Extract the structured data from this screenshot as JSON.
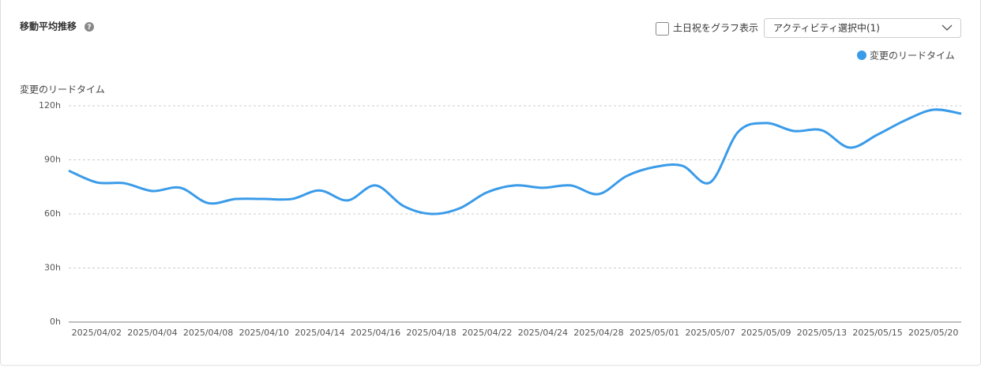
{
  "chart_data": {
    "type": "line",
    "title": "移動平均推移",
    "y_label": "変更のリードタイム",
    "categories": [
      null,
      "2025/04/02",
      null,
      "2025/04/04",
      null,
      "2025/04/08",
      null,
      "2025/04/10",
      null,
      "2025/04/14",
      null,
      "2025/04/16",
      null,
      "2025/04/18",
      null,
      "2025/04/22",
      null,
      "2025/04/24",
      null,
      "2025/04/28",
      null,
      "2025/05/01",
      null,
      "2025/05/07",
      null,
      "2025/05/09",
      null,
      "2025/05/13",
      null,
      "2025/05/15",
      null,
      "2025/05/20",
      null
    ],
    "series": [
      {
        "name": "変更のリードタイム",
        "color": "#3a9be9",
        "values": [
          84,
          77.5,
          77,
          72.7,
          74.5,
          66,
          68.3,
          68.3,
          68.3,
          73,
          67.5,
          75.8,
          64.4,
          60,
          63,
          72,
          75.8,
          74.5,
          75.8,
          71,
          81,
          86,
          86.7,
          77.5,
          105.5,
          110.4,
          106,
          106.4,
          96.8,
          104,
          112,
          117.8,
          115.6
        ]
      }
    ],
    "ylim": [
      0,
      120
    ],
    "yticks": [
      {
        "value": 0,
        "label": "0h"
      },
      {
        "value": 30,
        "label": "30h"
      },
      {
        "value": 60,
        "label": "60h"
      },
      {
        "value": 90,
        "label": "90h"
      },
      {
        "value": 120,
        "label": "120h"
      }
    ],
    "grid": true,
    "legend": "top-right"
  },
  "controls": {
    "holiday_checkbox": "土日祝をグラフ表示",
    "activity_select": "アクティビティ選択中(1)"
  }
}
